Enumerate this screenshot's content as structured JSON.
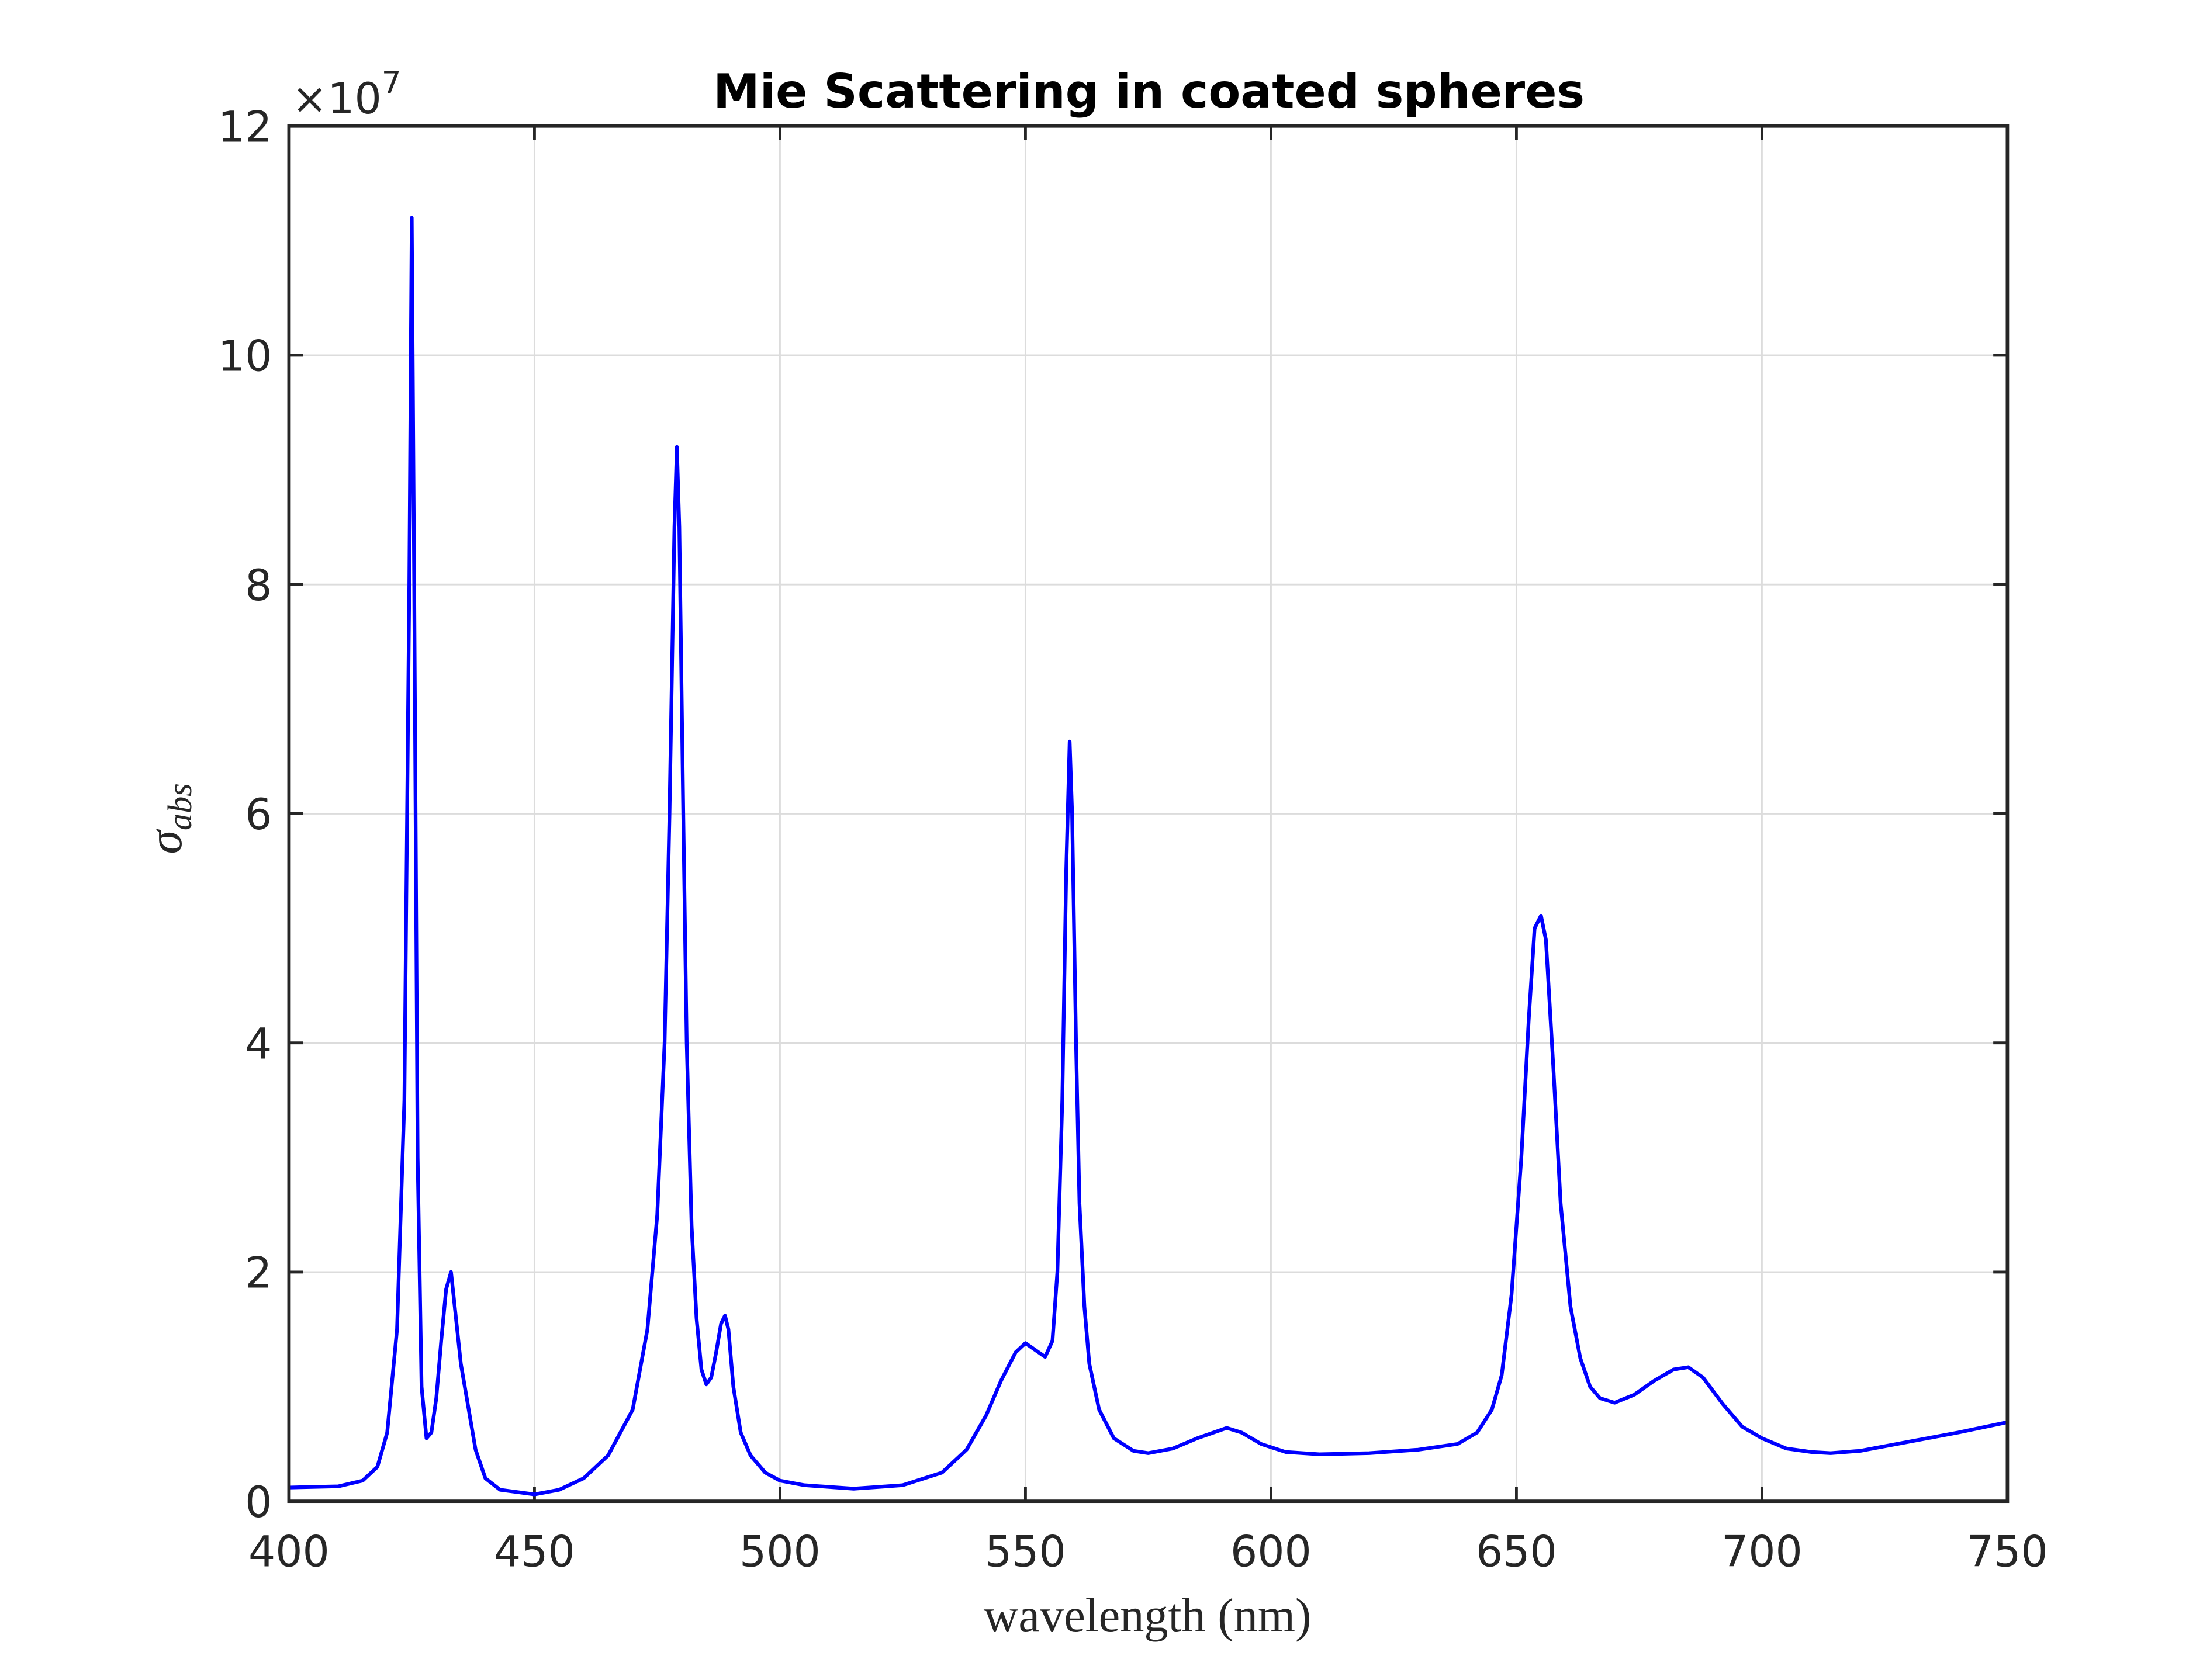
{
  "chart_data": {
    "type": "line",
    "title": "Mie Scattering in coated spheres",
    "x_label": "wavelength (nm)",
    "y_label": {
      "symbol": "σ",
      "subscript": "abs"
    },
    "y_multiplier": {
      "base": "×10",
      "exponent": "7"
    },
    "xlim": [
      400,
      750
    ],
    "xticks": [
      400,
      450,
      500,
      550,
      600,
      650,
      700,
      750
    ],
    "ylim": [
      0,
      12
    ],
    "yticks": [
      0,
      2,
      4,
      6,
      8,
      10,
      12
    ],
    "grid": true,
    "x": [
      400,
      410,
      415,
      418,
      420,
      422,
      423.5,
      424.5,
      425,
      425.5,
      426.2,
      427,
      428,
      429,
      430,
      431,
      432,
      433,
      434,
      435,
      436,
      437,
      438,
      440,
      443,
      450,
      455,
      460,
      465,
      470,
      473,
      475,
      476.5,
      477.5,
      478.5,
      479,
      479.5,
      480.3,
      481,
      482,
      483,
      484,
      485,
      486,
      487,
      488,
      488.8,
      489.5,
      490.5,
      492,
      494,
      497,
      500,
      505,
      515,
      525,
      533,
      538,
      542,
      545,
      548,
      550,
      552,
      554,
      555.5,
      556.5,
      557.5,
      558.3,
      559,
      559.5,
      560.3,
      561,
      562,
      563,
      565,
      568,
      572,
      575,
      580,
      585,
      591,
      594,
      598,
      603,
      610,
      620,
      630,
      638,
      642,
      645,
      647,
      649,
      651,
      652.5,
      653.7,
      655,
      656,
      657.5,
      659,
      661,
      663,
      665,
      667,
      670,
      674,
      678,
      682,
      685,
      688,
      692,
      696,
      700,
      705,
      710,
      714,
      720,
      730,
      740,
      750
    ],
    "series": [
      {
        "color": "#0000ff",
        "values": [
          0.12,
          0.13,
          0.18,
          0.3,
          0.6,
          1.5,
          3.5,
          8,
          11.2,
          8,
          3,
          1.0,
          0.55,
          0.6,
          0.9,
          1.4,
          1.85,
          2.0,
          1.6,
          1.2,
          0.95,
          0.7,
          0.45,
          0.2,
          0.1,
          0.06,
          0.1,
          0.2,
          0.4,
          0.8,
          1.5,
          2.5,
          4,
          6,
          8.5,
          9.2,
          8.5,
          6,
          4,
          2.4,
          1.6,
          1.15,
          1.02,
          1.08,
          1.3,
          1.55,
          1.62,
          1.5,
          1.0,
          0.6,
          0.4,
          0.25,
          0.18,
          0.14,
          0.11,
          0.14,
          0.25,
          0.45,
          0.75,
          1.05,
          1.3,
          1.38,
          1.32,
          1.26,
          1.4,
          2.0,
          3.5,
          5.5,
          6.63,
          6.0,
          4,
          2.6,
          1.7,
          1.2,
          0.8,
          0.55,
          0.44,
          0.42,
          0.46,
          0.55,
          0.64,
          0.6,
          0.5,
          0.43,
          0.41,
          0.42,
          0.45,
          0.5,
          0.6,
          0.8,
          1.1,
          1.8,
          3.0,
          4.2,
          5.0,
          5.11,
          4.9,
          3.8,
          2.6,
          1.7,
          1.25,
          1.0,
          0.9,
          0.86,
          0.93,
          1.05,
          1.15,
          1.17,
          1.08,
          0.85,
          0.65,
          0.55,
          0.46,
          0.43,
          0.42,
          0.44,
          0.52,
          0.6,
          0.69
        ]
      }
    ]
  }
}
